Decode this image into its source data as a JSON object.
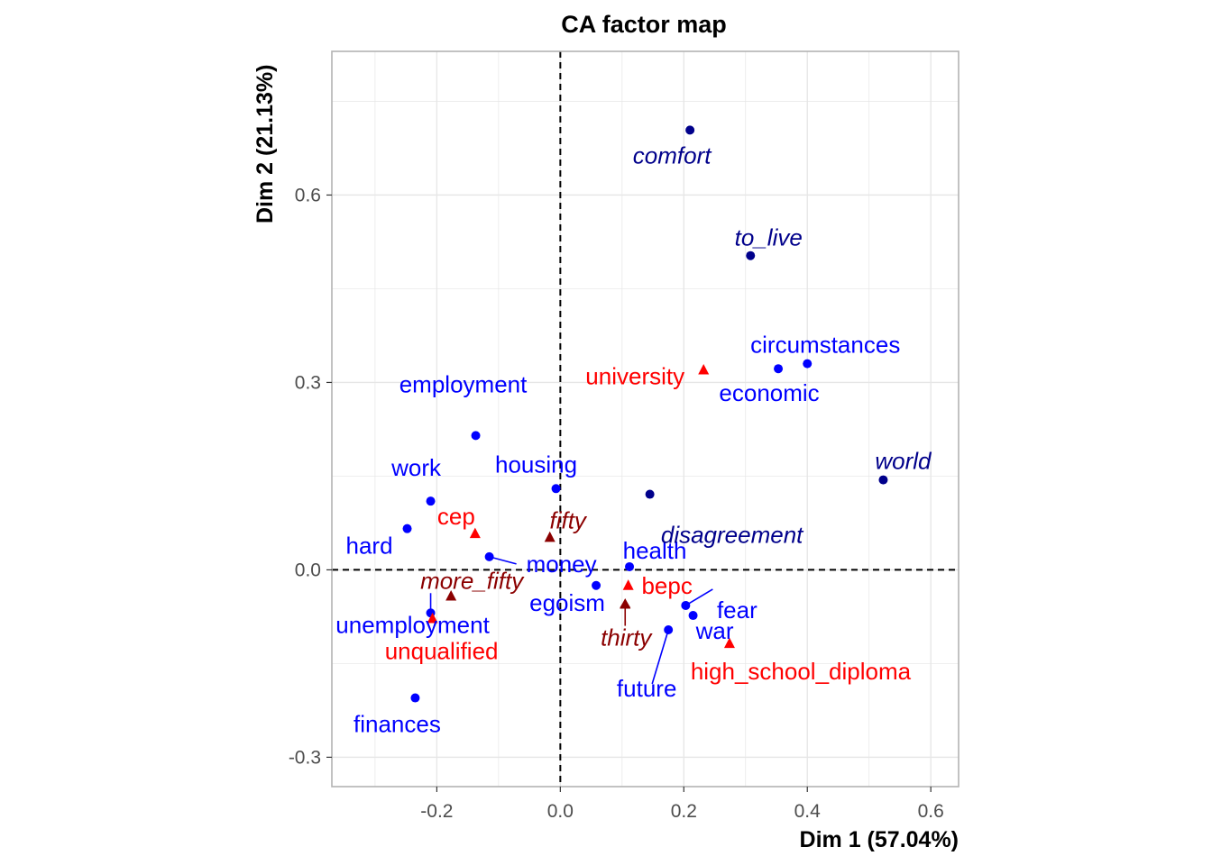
{
  "chart_data": {
    "type": "scatter",
    "title": "CA factor map",
    "xlabel": "Dim 1 (57.04%)",
    "ylabel": "Dim 2 (21.13%)",
    "xlim": [
      -0.37,
      0.645
    ],
    "ylim": [
      -0.347,
      0.83
    ],
    "xticks": [
      -0.2,
      0.0,
      0.2,
      0.4,
      0.6
    ],
    "xtick_labels": [
      "-0.2",
      "0.0",
      "0.2",
      "0.4",
      "0.6"
    ],
    "yticks": [
      -0.3,
      0.0,
      0.3,
      0.6
    ],
    "ytick_labels": [
      "-0.3",
      "0.0",
      "0.3",
      "0.6"
    ],
    "grid": true,
    "reference_lines": {
      "x": 0,
      "y": 0,
      "style": "dashed"
    },
    "colors": {
      "words": "#0000ff",
      "words_supplementary": "#00008b",
      "education": "#ff0000",
      "age": "#8b0000"
    },
    "series": [
      {
        "group": "words",
        "marker": "circle",
        "color": "#0000ff",
        "italic": false,
        "points": [
          {
            "label": "employment",
            "x": -0.137,
            "y": 0.215
          },
          {
            "label": "work",
            "x": -0.21,
            "y": 0.11
          },
          {
            "label": "hard",
            "x": -0.248,
            "y": 0.066
          },
          {
            "label": "housing",
            "x": -0.007,
            "y": 0.13
          },
          {
            "label": "money",
            "x": -0.115,
            "y": 0.021
          },
          {
            "label": "unemployment",
            "x": -0.21,
            "y": -0.069
          },
          {
            "label": "finances",
            "x": -0.235,
            "y": -0.205
          },
          {
            "label": "egoism",
            "x": 0.058,
            "y": -0.025
          },
          {
            "label": "health",
            "x": 0.112,
            "y": 0.005
          },
          {
            "label": "fear",
            "x": 0.203,
            "y": -0.057
          },
          {
            "label": "war",
            "x": 0.215,
            "y": -0.073
          },
          {
            "label": "future",
            "x": 0.175,
            "y": -0.096
          },
          {
            "label": "circumstances",
            "x": 0.4,
            "y": 0.33
          },
          {
            "label": "economic",
            "x": 0.353,
            "y": 0.322
          }
        ]
      },
      {
        "group": "words_supplementary",
        "marker": "circle",
        "color": "#00008b",
        "italic": true,
        "points": [
          {
            "label": "comfort",
            "x": 0.21,
            "y": 0.704
          },
          {
            "label": "to_live",
            "x": 0.308,
            "y": 0.503
          },
          {
            "label": "world",
            "x": 0.523,
            "y": 0.144
          },
          {
            "label": "disagreement",
            "x": 0.145,
            "y": 0.121
          }
        ]
      },
      {
        "group": "education",
        "marker": "triangle",
        "color": "#ff0000",
        "italic": false,
        "points": [
          {
            "label": "university",
            "x": 0.232,
            "y": 0.32
          },
          {
            "label": "cep",
            "x": -0.138,
            "y": 0.058
          },
          {
            "label": "bepc",
            "x": 0.11,
            "y": -0.025
          },
          {
            "label": "unqualified",
            "x": -0.207,
            "y": -0.078
          },
          {
            "label": "high_school_diploma",
            "x": 0.274,
            "y": -0.118
          }
        ]
      },
      {
        "group": "age",
        "marker": "triangle",
        "color": "#8b0000",
        "italic": true,
        "points": [
          {
            "label": "fifty",
            "x": -0.017,
            "y": 0.052
          },
          {
            "label": "more_fifty",
            "x": -0.177,
            "y": -0.042
          },
          {
            "label": "thirty",
            "x": 0.105,
            "y": -0.055
          }
        ]
      }
    ]
  }
}
